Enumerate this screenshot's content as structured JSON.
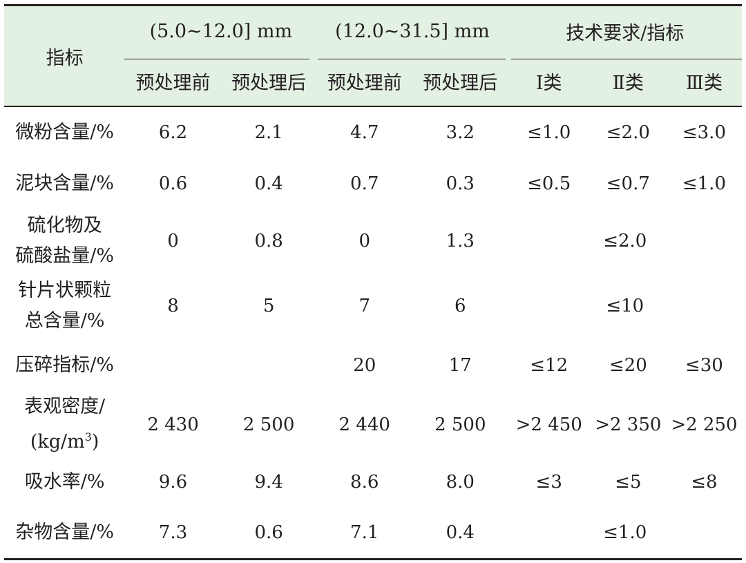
{
  "table": {
    "corner_header": "指标",
    "group_headers": [
      "(5.0~12.0] mm",
      "(12.0~31.5] mm",
      "技术要求/指标"
    ],
    "sub_headers": [
      "预处理前",
      "预处理后",
      "预处理前",
      "预处理后",
      "Ⅰ类",
      "Ⅱ类",
      "Ⅲ类"
    ],
    "rows": [
      {
        "label": "微粉含量/%",
        "cells": [
          "6.2",
          "2.1",
          "4.7",
          "3.2",
          "≤1.0",
          "≤2.0",
          "≤3.0"
        ]
      },
      {
        "label": "泥块含量/%",
        "cells": [
          "0.6",
          "0.4",
          "0.7",
          "0.3",
          "≤0.5",
          "≤0.7",
          "≤1.0"
        ]
      },
      {
        "label_lines": [
          "硫化物及",
          "硫酸盐量/%"
        ],
        "cells": [
          "0",
          "0.8",
          "0",
          "1.3"
        ],
        "requirement": "≤2.0"
      },
      {
        "label_lines": [
          "针片状颗粒",
          "总含量/%"
        ],
        "cells": [
          "8",
          "5",
          "7",
          "6"
        ],
        "requirement": "≤10"
      },
      {
        "label": "压碎指标/%",
        "cells": [
          "",
          "",
          "20",
          "17",
          "≤12",
          "≤20",
          "≤30"
        ]
      },
      {
        "label_lines": [
          "表观密度/",
          "(kg/m",
          "3",
          ")"
        ],
        "cells": [
          "2 430",
          "2 500",
          "2 440",
          "2 500",
          ">2 450",
          ">2 350",
          ">2 250"
        ]
      },
      {
        "label": "吸水率/%",
        "cells": [
          "9.6",
          "9.4",
          "8.6",
          "8.0",
          "≤3",
          "≤5",
          "≤8"
        ]
      },
      {
        "label_lines": [
          "杂物含量/%"
        ],
        "cells": [
          "7.3",
          "0.6",
          "7.1",
          "0.4"
        ],
        "requirement": "≤1.0"
      }
    ]
  }
}
